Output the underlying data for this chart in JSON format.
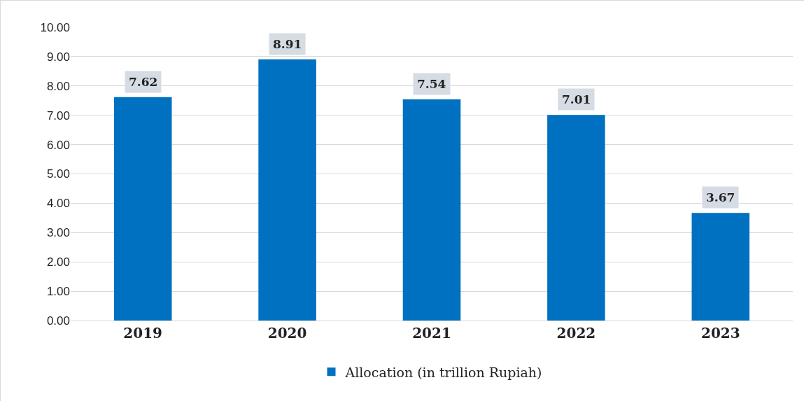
{
  "chart_data": {
    "type": "bar",
    "categories": [
      "2019",
      "2020",
      "2021",
      "2022",
      "2023"
    ],
    "series": [
      {
        "name": "Allocation (in trillion Rupiah)",
        "color": "#0070c0",
        "values": [
          7.62,
          8.91,
          7.54,
          7.01,
          3.67
        ]
      }
    ],
    "ylim": [
      0,
      10
    ],
    "yticks": [
      {
        "value": 0,
        "label": "0.00"
      },
      {
        "value": 1,
        "label": "1.00"
      },
      {
        "value": 2,
        "label": "2.00"
      },
      {
        "value": 3,
        "label": "3.00"
      },
      {
        "value": 4,
        "label": "4.00"
      },
      {
        "value": 5,
        "label": "5.00"
      },
      {
        "value": 6,
        "label": "6.00"
      },
      {
        "value": 7,
        "label": "7.00"
      },
      {
        "value": 8,
        "label": "8.00"
      },
      {
        "value": 9,
        "label": "9.00"
      },
      {
        "value": 10,
        "label": "10.00"
      }
    ],
    "grid": "y",
    "legend": "bottom",
    "data_labels": true
  }
}
